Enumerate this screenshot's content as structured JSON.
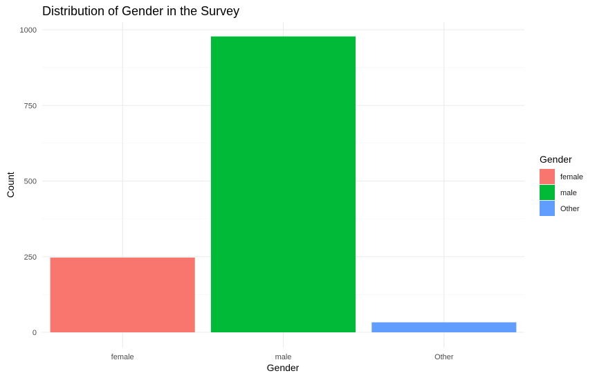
{
  "chart_data": {
    "type": "bar",
    "title": "Distribution of Gender in the Survey",
    "xlabel": "Gender",
    "ylabel": "Count",
    "categories": [
      "female",
      "male",
      "Other"
    ],
    "values": [
      247,
      978,
      33
    ],
    "colors": [
      "#F8766D",
      "#00BA38",
      "#619CFF"
    ],
    "ylim": [
      0,
      1000
    ],
    "yticks": [
      0,
      250,
      500,
      750,
      1000
    ],
    "grid": true,
    "legend": {
      "title": "Gender",
      "position": "right",
      "entries": [
        "female",
        "male",
        "Other"
      ]
    }
  }
}
